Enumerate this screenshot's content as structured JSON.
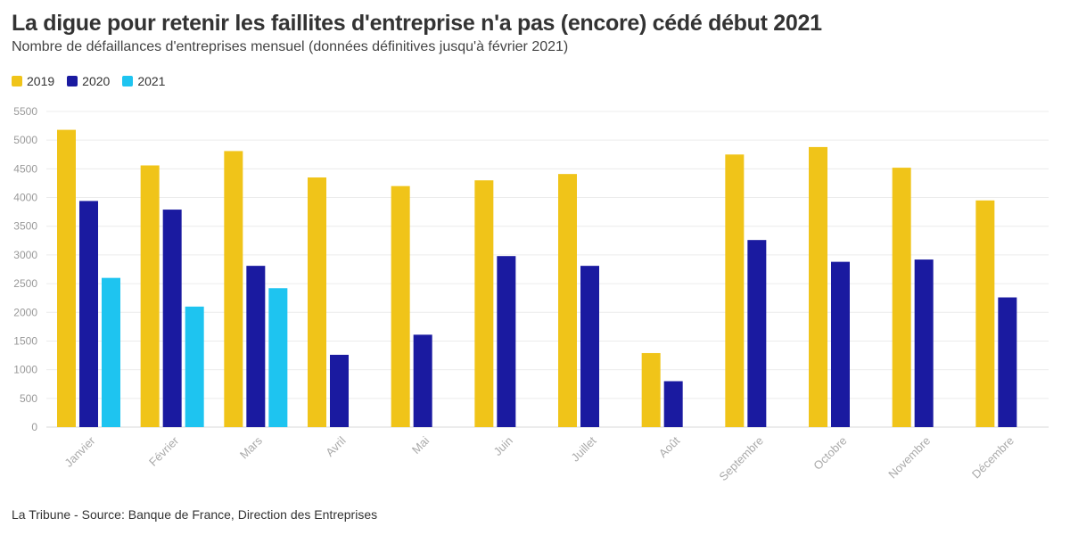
{
  "header": {
    "title": "La digue pour retenir les faillites d'entreprise n'a pas (encore) cédé début 2021",
    "subtitle": "Nombre de défaillances d'entreprises mensuel (données définitives jusqu'à février 2021)"
  },
  "footer": {
    "source": "La Tribune - Source: Banque de France, Direction des Entreprises"
  },
  "chart_data": {
    "type": "bar",
    "title": "La digue pour retenir les faillites d'entreprise n'a pas (encore) cédé début 2021",
    "subtitle": "Nombre de défaillances d'entreprises mensuel (données définitives jusqu'à février 2021)",
    "xlabel": "",
    "ylabel": "",
    "ylim": [
      0,
      5500
    ],
    "yticks": [
      0,
      500,
      1000,
      1500,
      2000,
      2500,
      3000,
      3500,
      4000,
      4500,
      5000,
      5500
    ],
    "grid": true,
    "legend_position": "top-left",
    "categories": [
      "Janvier",
      "Février",
      "Mars",
      "Avril",
      "Mai",
      "Juin",
      "Juillet",
      "Août",
      "Septembre",
      "Octobre",
      "Novembre",
      "Décembre"
    ],
    "series": [
      {
        "name": "2019",
        "color": "#f0c419",
        "values": [
          5180,
          4560,
          4810,
          4350,
          4200,
          4300,
          4410,
          1290,
          4750,
          4880,
          4520,
          3950
        ]
      },
      {
        "name": "2020",
        "color": "#1a1aa0",
        "values": [
          3940,
          3790,
          2810,
          1260,
          1610,
          2980,
          2810,
          800,
          3260,
          2880,
          2920,
          2260
        ]
      },
      {
        "name": "2021",
        "color": "#1ec4f0",
        "values": [
          2600,
          2100,
          2420,
          null,
          null,
          null,
          null,
          null,
          null,
          null,
          null,
          null
        ]
      }
    ]
  }
}
